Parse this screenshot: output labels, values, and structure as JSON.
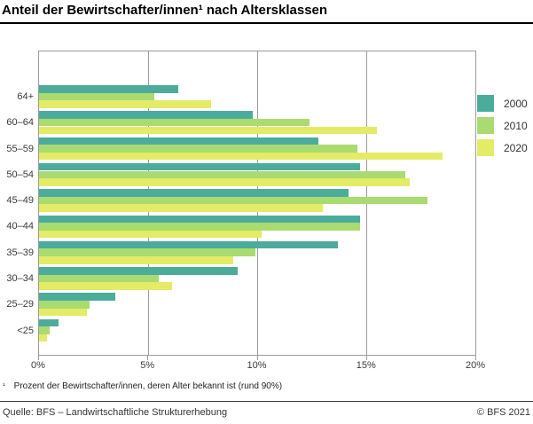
{
  "title": "Anteil der Bewirtschafter/innen¹ nach Altersklassen",
  "footnote": {
    "marker": "¹",
    "text": "Prozent der Bewirtschafter/innen, deren Alter bekannt ist (rund 90%)"
  },
  "source": {
    "left": "Quelle: BFS – Landwirtschaftliche Strukturerhebung",
    "right": "© BFS 2021"
  },
  "colors": {
    "frame": "#9b9b9b",
    "grid": "#9b9b9b",
    "series_2000": "#4CAC9C",
    "series_2010": "#AADB71",
    "series_2020": "#E4EB66"
  },
  "chart_data": {
    "type": "bar",
    "orientation": "horizontal",
    "title": "Anteil der Bewirtschafter/innen¹ nach Altersklassen",
    "categories": [
      "64+",
      "60–64",
      "55–59",
      "50–54",
      "45–49",
      "40–44",
      "35–39",
      "30–34",
      "25–29",
      "<25"
    ],
    "series": [
      {
        "name": "2000",
        "color": "#4CAC9C",
        "values": [
          6.4,
          9.8,
          12.8,
          14.7,
          14.2,
          14.7,
          13.7,
          9.1,
          3.5,
          0.9
        ]
      },
      {
        "name": "2010",
        "color": "#AADB71",
        "values": [
          5.3,
          12.4,
          14.6,
          16.8,
          17.8,
          14.7,
          9.9,
          5.5,
          2.3,
          0.5
        ]
      },
      {
        "name": "2020",
        "color": "#E4EB66",
        "values": [
          7.9,
          15.5,
          18.5,
          17.0,
          13.0,
          10.2,
          8.9,
          6.1,
          2.2,
          0.35
        ]
      }
    ],
    "xlabel": "",
    "ylabel": "",
    "xlim": [
      0,
      20
    ],
    "x_ticks": [
      {
        "value": 0,
        "label": "0%"
      },
      {
        "value": 5,
        "label": "5%"
      },
      {
        "value": 10,
        "label": "10%"
      },
      {
        "value": 15,
        "label": "15%"
      },
      {
        "value": 20,
        "label": "20%"
      }
    ],
    "grid": "vertical",
    "legend_position": "right"
  }
}
